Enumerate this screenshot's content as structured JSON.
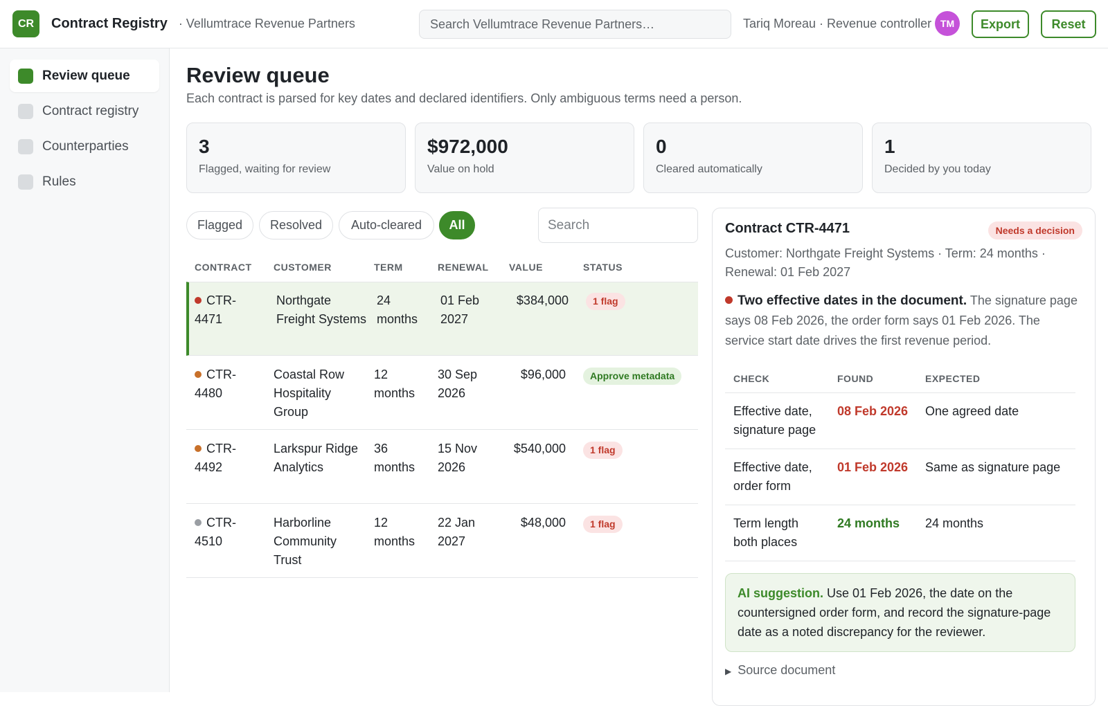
{
  "app": {
    "logo_text": "CR",
    "name": "Contract Registry",
    "org": "· Vellumtrace Revenue Partners",
    "search_placeholder": "Search Vellumtrace Revenue Partners…",
    "user": "Tariq Moreau · Revenue controller",
    "avatar_initials": "TM",
    "export_label": "Export",
    "reset_label": "Reset"
  },
  "sidebar": {
    "items": [
      {
        "label": "Review queue",
        "active": true
      },
      {
        "label": "Contract registry",
        "active": false
      },
      {
        "label": "Counterparties",
        "active": false
      },
      {
        "label": "Rules",
        "active": false
      }
    ]
  },
  "page": {
    "title": "Review queue",
    "subtitle": "Each contract is parsed for key dates and declared identifiers. Only ambiguous terms need a person."
  },
  "stats": [
    {
      "value": "3",
      "label": "Flagged, waiting for review"
    },
    {
      "value": "$972,000",
      "label": "Value on hold"
    },
    {
      "value": "0",
      "label": "Cleared automatically"
    },
    {
      "value": "1",
      "label": "Decided by you today"
    }
  ],
  "filters": {
    "chips": [
      {
        "label": "Flagged",
        "active": false
      },
      {
        "label": "Resolved",
        "active": false
      },
      {
        "label": "Auto-cleared",
        "active": false
      },
      {
        "label": "All",
        "active": true
      }
    ],
    "search_placeholder": "Search"
  },
  "table": {
    "headers": [
      "CONTRACT",
      "CUSTOMER",
      "TERM",
      "RENEWAL",
      "VALUE",
      "STATUS"
    ],
    "rows": [
      {
        "contract": "CTR-4471",
        "dot_color": "#c0392b",
        "customer": "Northgate Freight Systems",
        "term": "24 months",
        "renewal": "01 Feb 2027",
        "value": "$384,000",
        "status": "1 flag",
        "status_type": "flag",
        "selected": true
      },
      {
        "contract": "CTR-4480",
        "dot_color": "#c8702a",
        "customer": "Coastal Row Hospitality Group",
        "term": "12 months",
        "renewal": "30 Sep 2026",
        "value": "$96,000",
        "status": "Approve metadata",
        "status_type": "approve",
        "selected": false
      },
      {
        "contract": "CTR-4492",
        "dot_color": "#c8702a",
        "customer": "Larkspur Ridge Analytics",
        "term": "36 months",
        "renewal": "15 Nov 2026",
        "value": "$540,000",
        "status": "1 flag",
        "status_type": "flag",
        "selected": false
      },
      {
        "contract": "CTR-4510",
        "dot_color": "#9a9ea3",
        "customer": "Harborline Community Trust",
        "term": "12 months",
        "renewal": "22 Jan 2027",
        "value": "$48,000",
        "status": "1 flag",
        "status_type": "flag",
        "selected": false
      }
    ]
  },
  "detail": {
    "title": "Contract CTR-4471",
    "badge": "Needs a decision",
    "meta": "Customer: Northgate Freight Systems · Term: 24 months · Renewal: 01 Feb 2027",
    "issue_title": "Two effective dates in the document.",
    "issue_text": "The signature page says 08 Feb 2026, the order form says 01 Feb 2026. The service start date drives the first revenue period.",
    "check_headers": [
      "CHECK",
      "FOUND",
      "EXPECTED"
    ],
    "checks": [
      {
        "check": "Effective date, signature page",
        "found": "08 Feb 2026",
        "found_state": "bad",
        "expected": "One agreed date"
      },
      {
        "check": "Effective date, order form",
        "found": "01 Feb 2026",
        "found_state": "bad",
        "expected": "Same as signature page"
      },
      {
        "check": "Term length both places",
        "found": "24 months",
        "found_state": "ok",
        "expected": "24 months"
      }
    ],
    "ai_label": "AI suggestion.",
    "ai_text": "Use 01 Feb 2026, the date on the countersigned order form, and record the signature-page date as a noted discrepancy for the reviewer.",
    "source_label": "Source document"
  }
}
